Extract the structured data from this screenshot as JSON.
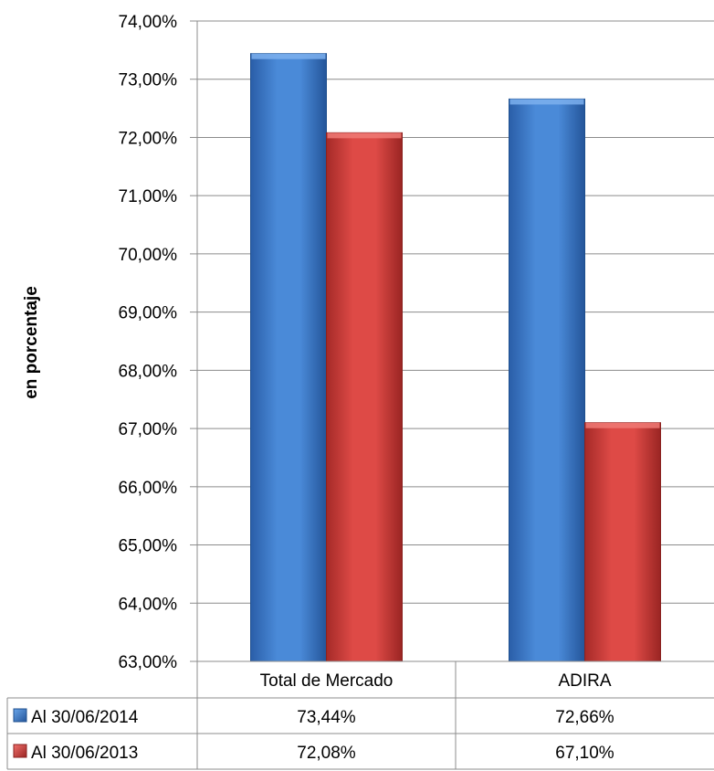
{
  "chart_data": {
    "type": "bar",
    "title": "",
    "ylabel": "en porcentaje",
    "xlabel": "",
    "categories": [
      "Total de Mercado",
      "ADIRA"
    ],
    "ylim": [
      63,
      74
    ],
    "y_ticks": [
      "63,00%",
      "64,00%",
      "65,00%",
      "66,00%",
      "67,00%",
      "68,00%",
      "69,00%",
      "70,00%",
      "71,00%",
      "72,00%",
      "73,00%",
      "74,00%"
    ],
    "series": [
      {
        "name": "Al 30/06/2014",
        "values": [
          73.44,
          72.66
        ],
        "labels": [
          "73,44%",
          "72,66%"
        ],
        "color": "#3a78c9"
      },
      {
        "name": "Al 30/06/2013",
        "values": [
          72.08,
          67.1
        ],
        "labels": [
          "72,08%",
          "67,10%"
        ],
        "color": "#cc3b38"
      }
    ],
    "grid": true,
    "legend": "data-table"
  }
}
